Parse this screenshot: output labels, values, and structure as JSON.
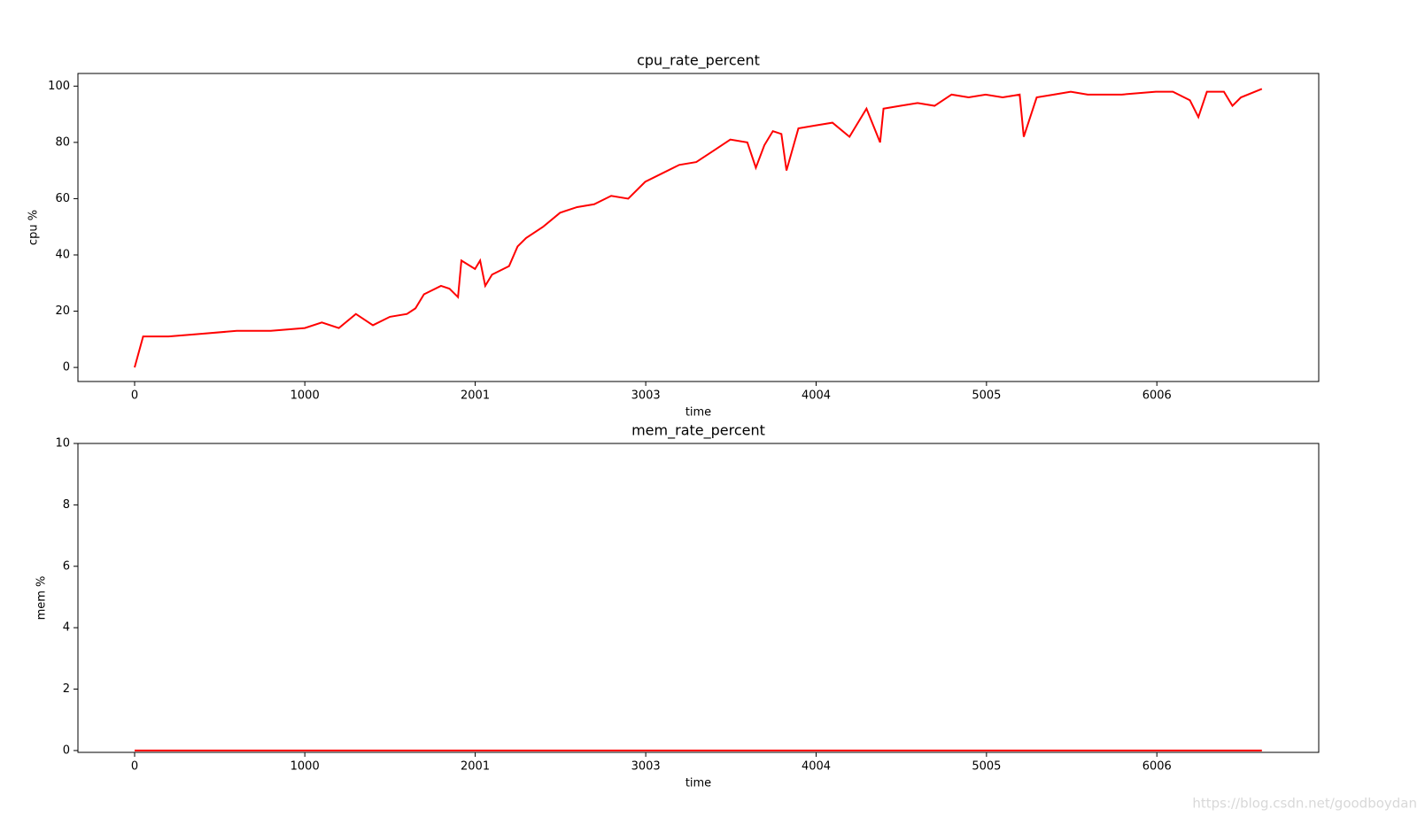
{
  "chart_data": [
    {
      "type": "line",
      "title": "cpu_rate_percent",
      "xlabel": "time",
      "ylabel": "cpu %",
      "x": [
        0,
        50,
        200,
        400,
        600,
        800,
        1000,
        1100,
        1200,
        1300,
        1400,
        1500,
        1600,
        1650,
        1700,
        1800,
        1850,
        1900,
        1920,
        2000,
        2030,
        2060,
        2100,
        2200,
        2250,
        2300,
        2400,
        2500,
        2600,
        2700,
        2800,
        2900,
        3000,
        3100,
        3200,
        3300,
        3400,
        3500,
        3600,
        3650,
        3700,
        3750,
        3800,
        3830,
        3900,
        4000,
        4100,
        4200,
        4300,
        4380,
        4400,
        4500,
        4600,
        4700,
        4800,
        4900,
        5000,
        5100,
        5200,
        5224,
        5300,
        5400,
        5500,
        5600,
        5800,
        6000,
        6100,
        6200,
        6250,
        6300,
        6400,
        6450,
        6500,
        6623
      ],
      "series": [
        {
          "name": "cpu",
          "color": "#ff0000",
          "values": [
            0,
            11,
            11,
            12,
            13,
            13,
            14,
            16,
            14,
            19,
            15,
            18,
            19,
            21,
            26,
            29,
            28,
            25,
            38,
            35,
            38,
            29,
            33,
            36,
            43,
            46,
            50,
            55,
            57,
            58,
            61,
            60,
            66,
            69,
            72,
            73,
            77,
            81,
            80,
            71,
            79,
            84,
            83,
            70,
            85,
            86,
            87,
            82,
            92,
            80,
            92,
            93,
            94,
            93,
            97,
            96,
            97,
            96,
            97,
            82,
            96,
            97,
            98,
            97,
            97,
            98,
            98,
            95,
            89,
            98,
            98,
            93,
            96,
            99
          ]
        }
      ],
      "xlim": [
        -333,
        6957
      ],
      "xticks": [
        0,
        1000,
        2001,
        3003,
        4004,
        5005,
        6006
      ],
      "ylim": [
        -5,
        104.5
      ],
      "yticks": [
        0,
        20,
        40,
        60,
        80,
        100
      ]
    },
    {
      "type": "line",
      "title": "mem_rate_percent",
      "xlabel": "time",
      "ylabel": "mem %",
      "x": [
        0,
        1000,
        2000,
        3000,
        4000,
        5000,
        6000,
        6623
      ],
      "series": [
        {
          "name": "mem",
          "color": "#ff0000",
          "values": [
            0,
            0,
            0,
            0,
            0,
            0,
            0,
            0
          ]
        }
      ],
      "xlim": [
        -333,
        6957
      ],
      "xticks": [
        0,
        1000,
        2001,
        3003,
        4004,
        5005,
        6006
      ],
      "ylim": [
        -0.06,
        10
      ],
      "yticks": [
        0,
        2,
        4,
        6,
        8,
        10
      ]
    }
  ],
  "watermark": "https://blog.csdn.net/goodboydan"
}
